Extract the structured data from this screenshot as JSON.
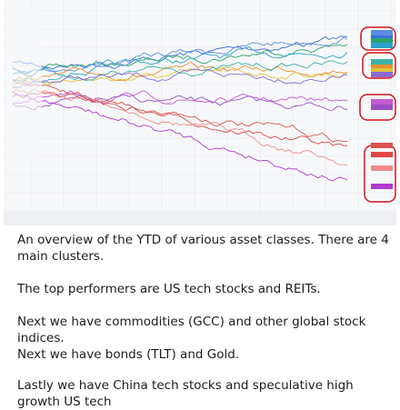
{
  "message": {
    "paragraphs": [
      "An overview of the YTD of various asset classes. There are 4 main clusters.",
      "The top performers are US tech stocks and REITs.",
      "Next we have commodities (GCC) and other global stock indices.",
      "Next we have bonds (TLT) and Gold.",
      "Lastly we have China tech stocks and speculative high growth US tech"
    ]
  }
}
